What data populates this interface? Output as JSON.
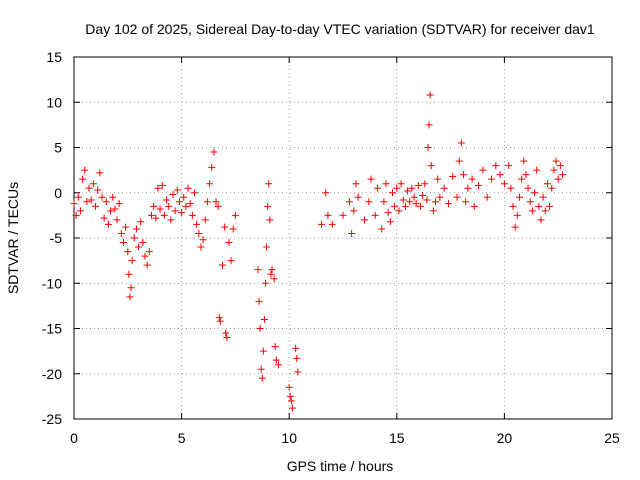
{
  "chart_data": {
    "type": "scatter",
    "title": "Day 102 of 2025, Sidereal Day-to-day VTEC variation (SDTVAR) for receiver dav1",
    "xlabel": "GPS time / hours",
    "ylabel": "SDTVAR / TECUs",
    "xlim": [
      0,
      25
    ],
    "ylim": [
      -25,
      15
    ],
    "xticks": [
      "0",
      "5",
      "10",
      "15",
      "20",
      "25"
    ],
    "yticks": [
      "15",
      "10",
      "5",
      "0",
      "-5",
      "-10",
      "-15",
      "-20",
      "-25"
    ],
    "grid": true,
    "marker": "plus",
    "marker_color": "#ff0000",
    "series": [
      {
        "name": "SDTVAR",
        "points": [
          [
            0.0,
            -1.2
          ],
          [
            0.1,
            -2.5
          ],
          [
            0.2,
            -0.5
          ],
          [
            0.3,
            -2.0
          ],
          [
            0.4,
            1.5
          ],
          [
            0.5,
            2.5
          ],
          [
            0.6,
            -1.0
          ],
          [
            0.7,
            0.5
          ],
          [
            0.8,
            -0.8
          ],
          [
            0.9,
            1.0
          ],
          [
            1.0,
            -1.5
          ],
          [
            1.1,
            0.3
          ],
          [
            1.2,
            2.2
          ],
          [
            1.3,
            -0.5
          ],
          [
            1.4,
            -2.8
          ],
          [
            1.5,
            -1.0
          ],
          [
            1.6,
            -3.5
          ],
          [
            1.7,
            -2.0
          ],
          [
            1.8,
            -0.5
          ],
          [
            1.9,
            -1.8
          ],
          [
            2.0,
            -3.0
          ],
          [
            2.1,
            -1.2
          ],
          [
            2.2,
            -4.5
          ],
          [
            2.3,
            -5.5
          ],
          [
            2.4,
            -3.8
          ],
          [
            2.5,
            -6.5
          ],
          [
            2.55,
            -9.0
          ],
          [
            2.6,
            -11.5
          ],
          [
            2.65,
            -10.5
          ],
          [
            2.7,
            -7.5
          ],
          [
            2.8,
            -5.0
          ],
          [
            2.9,
            -4.0
          ],
          [
            3.0,
            -6.0
          ],
          [
            3.1,
            -3.2
          ],
          [
            3.2,
            -5.5
          ],
          [
            3.3,
            -7.0
          ],
          [
            3.4,
            -8.0
          ],
          [
            3.5,
            -6.5
          ],
          [
            3.6,
            -2.5
          ],
          [
            3.7,
            -1.5
          ],
          [
            3.8,
            -2.8
          ],
          [
            3.9,
            0.5
          ],
          [
            4.0,
            -1.8
          ],
          [
            4.1,
            0.8
          ],
          [
            4.2,
            -2.5
          ],
          [
            4.3,
            -0.8
          ],
          [
            4.4,
            -1.5
          ],
          [
            4.5,
            -3.0
          ],
          [
            4.6,
            -0.2
          ],
          [
            4.7,
            -2.0
          ],
          [
            4.8,
            0.3
          ],
          [
            4.9,
            -1.0
          ],
          [
            5.0,
            -2.2
          ],
          [
            5.1,
            -0.5
          ],
          [
            5.2,
            -1.5
          ],
          [
            5.3,
            0.5
          ],
          [
            5.4,
            -1.2
          ],
          [
            5.5,
            -2.5
          ],
          [
            5.6,
            0.0
          ],
          [
            5.7,
            -3.5
          ],
          [
            5.8,
            -4.5
          ],
          [
            5.9,
            -6.0
          ],
          [
            6.0,
            -5.2
          ],
          [
            6.1,
            -3.0
          ],
          [
            6.2,
            -1.0
          ],
          [
            6.3,
            1.0
          ],
          [
            6.4,
            2.8
          ],
          [
            6.5,
            4.5
          ],
          [
            6.6,
            -1.0
          ],
          [
            6.7,
            -1.5
          ],
          [
            6.75,
            -13.8
          ],
          [
            6.8,
            -14.2
          ],
          [
            6.9,
            -8.0
          ],
          [
            7.0,
            -3.8
          ],
          [
            7.05,
            -15.5
          ],
          [
            7.1,
            -16.0
          ],
          [
            7.2,
            -5.5
          ],
          [
            7.3,
            -7.5
          ],
          [
            7.4,
            -4.0
          ],
          [
            7.5,
            -2.5
          ],
          [
            8.55,
            -8.5
          ],
          [
            8.6,
            -12.0
          ],
          [
            8.65,
            -15.0
          ],
          [
            8.7,
            -19.5
          ],
          [
            8.75,
            -20.5
          ],
          [
            8.8,
            -17.5
          ],
          [
            8.85,
            -14.0
          ],
          [
            8.9,
            -10.0
          ],
          [
            8.95,
            -6.0
          ],
          [
            9.0,
            -1.5
          ],
          [
            9.05,
            1.0
          ],
          [
            9.1,
            -3.0
          ],
          [
            9.15,
            -9.0
          ],
          [
            9.2,
            -8.5
          ],
          [
            9.3,
            -9.5
          ],
          [
            9.35,
            -17.0
          ],
          [
            9.4,
            -18.5
          ],
          [
            9.5,
            -19.0
          ],
          [
            10.0,
            -21.5
          ],
          [
            10.05,
            -22.5
          ],
          [
            10.1,
            -23.0
          ],
          [
            10.15,
            -23.8
          ],
          [
            10.3,
            -17.2
          ],
          [
            10.35,
            -18.3
          ],
          [
            10.4,
            -19.8
          ],
          [
            11.5,
            -3.5
          ],
          [
            11.7,
            0.0
          ],
          [
            11.8,
            -2.5
          ],
          [
            12.0,
            -3.5
          ],
          [
            12.5,
            -2.5
          ],
          [
            12.8,
            -1.0
          ],
          [
            12.9,
            -4.5
          ],
          [
            13.0,
            -2.0
          ],
          [
            13.1,
            1.0
          ],
          [
            13.2,
            -0.5
          ],
          [
            13.5,
            -3.0
          ],
          [
            13.7,
            -1.0
          ],
          [
            13.8,
            1.5
          ],
          [
            14.0,
            -2.5
          ],
          [
            14.1,
            0.5
          ],
          [
            14.3,
            -4.0
          ],
          [
            14.4,
            -1.0
          ],
          [
            14.5,
            1.0
          ],
          [
            14.6,
            -2.2
          ],
          [
            14.7,
            -3.2
          ],
          [
            14.8,
            0.0
          ],
          [
            14.9,
            -1.5
          ],
          [
            15.0,
            0.5
          ],
          [
            15.1,
            -2.0
          ],
          [
            15.2,
            1.0
          ],
          [
            15.3,
            -0.8
          ],
          [
            15.4,
            -1.5
          ],
          [
            15.5,
            0.2
          ],
          [
            15.6,
            -1.0
          ],
          [
            15.7,
            0.5
          ],
          [
            15.8,
            -0.5
          ],
          [
            15.9,
            -1.2
          ],
          [
            16.0,
            0.8
          ],
          [
            16.1,
            -1.5
          ],
          [
            16.2,
            -0.3
          ],
          [
            16.3,
            1.0
          ],
          [
            16.4,
            -0.8
          ],
          [
            16.45,
            5.0
          ],
          [
            16.5,
            7.5
          ],
          [
            16.55,
            10.8
          ],
          [
            16.6,
            3.0
          ],
          [
            16.7,
            -2.0
          ],
          [
            16.8,
            -1.0
          ],
          [
            16.9,
            1.5
          ],
          [
            17.0,
            -0.5
          ],
          [
            17.2,
            0.5
          ],
          [
            17.4,
            -1.2
          ],
          [
            17.6,
            1.8
          ],
          [
            17.8,
            -0.5
          ],
          [
            17.9,
            3.5
          ],
          [
            18.0,
            5.5
          ],
          [
            18.1,
            2.0
          ],
          [
            18.2,
            -1.0
          ],
          [
            18.3,
            0.5
          ],
          [
            18.5,
            1.5
          ],
          [
            18.6,
            -1.5
          ],
          [
            18.8,
            0.8
          ],
          [
            19.0,
            2.5
          ],
          [
            19.2,
            -0.5
          ],
          [
            19.4,
            1.5
          ],
          [
            19.6,
            3.0
          ],
          [
            19.8,
            2.0
          ],
          [
            20.0,
            1.0
          ],
          [
            20.2,
            3.0
          ],
          [
            20.3,
            0.5
          ],
          [
            20.4,
            -1.5
          ],
          [
            20.5,
            -3.8
          ],
          [
            20.6,
            -2.5
          ],
          [
            20.7,
            -0.5
          ],
          [
            20.8,
            1.5
          ],
          [
            20.9,
            3.5
          ],
          [
            21.0,
            2.0
          ],
          [
            21.1,
            0.5
          ],
          [
            21.2,
            -1.0
          ],
          [
            21.3,
            -2.0
          ],
          [
            21.4,
            0.0
          ],
          [
            21.5,
            2.5
          ],
          [
            21.6,
            -1.5
          ],
          [
            21.7,
            -3.0
          ],
          [
            21.8,
            -0.5
          ],
          [
            21.9,
            -2.0
          ],
          [
            22.0,
            1.0
          ],
          [
            22.1,
            -1.5
          ],
          [
            22.2,
            0.5
          ],
          [
            22.3,
            2.5
          ],
          [
            22.4,
            3.5
          ],
          [
            22.5,
            1.5
          ],
          [
            22.6,
            3.0
          ],
          [
            22.7,
            2.0
          ]
        ]
      }
    ]
  }
}
